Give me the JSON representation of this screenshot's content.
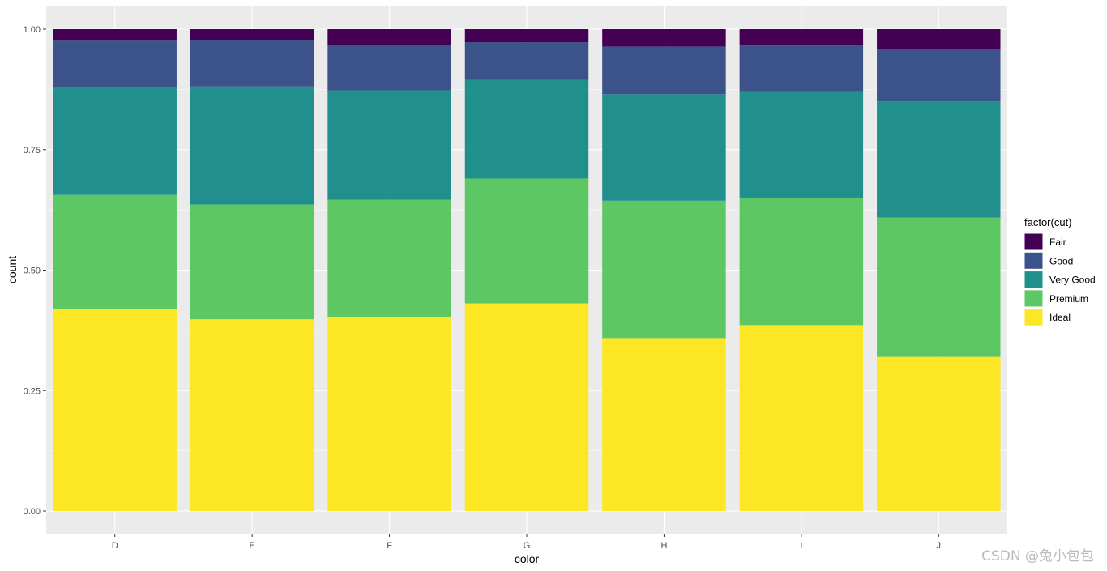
{
  "chart_data": {
    "type": "bar",
    "stacked": "fill",
    "title": "",
    "xlabel": "color",
    "ylabel": "count",
    "ylim": [
      0,
      1
    ],
    "categories": [
      "D",
      "E",
      "F",
      "G",
      "H",
      "I",
      "J"
    ],
    "y_ticks": [
      0,
      0.25,
      0.5,
      0.75,
      1
    ],
    "y_tick_labels": [
      "0.00",
      "0.25",
      "0.50",
      "0.75",
      "1.00"
    ],
    "legend_title": "factor(cut)",
    "legend_position": "right",
    "series": [
      {
        "name": "Fair",
        "color": "#440154",
        "values": [
          0.024,
          0.022,
          0.033,
          0.027,
          0.036,
          0.034,
          0.042
        ]
      },
      {
        "name": "Good",
        "color": "#3B528B",
        "values": [
          0.096,
          0.097,
          0.094,
          0.078,
          0.099,
          0.095,
          0.108
        ]
      },
      {
        "name": "Very Good",
        "color": "#21908C",
        "values": [
          0.224,
          0.245,
          0.227,
          0.205,
          0.221,
          0.222,
          0.241
        ]
      },
      {
        "name": "Premium",
        "color": "#5DC863",
        "values": [
          0.237,
          0.238,
          0.244,
          0.259,
          0.285,
          0.263,
          0.289
        ]
      },
      {
        "name": "Ideal",
        "color": "#FDE725",
        "values": [
          0.419,
          0.398,
          0.402,
          0.431,
          0.359,
          0.386,
          0.32
        ]
      }
    ]
  },
  "watermark": "CSDN @兔小包包"
}
